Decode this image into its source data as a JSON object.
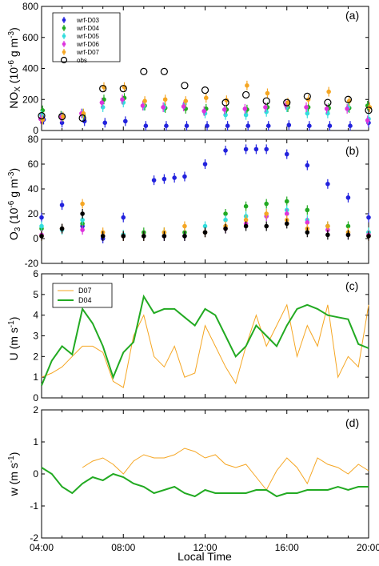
{
  "chart_data": [
    {
      "type": "scatter",
      "panel_label": "(a)",
      "ylabel": "NO_X (10^-6 g m^-3)",
      "ylim": [
        0,
        800
      ],
      "yticks": [
        0,
        200,
        400,
        600,
        800
      ],
      "xlim": [
        4,
        20
      ],
      "legend_placement": "top-left",
      "series": [
        {
          "name": "wrf-D03",
          "color": "#2222dd",
          "marker": "o",
          "x": [
            4.1,
            5.0,
            6.1,
            7.1,
            8.1,
            9.1,
            10.1,
            11.1,
            12.1,
            13.1,
            14.1,
            15.1,
            16.1,
            17.1,
            18.1,
            19.1,
            20.0
          ],
          "values": [
            70,
            50,
            60,
            50,
            60,
            30,
            30,
            30,
            30,
            30,
            30,
            30,
            35,
            30,
            30,
            30,
            50
          ]
        },
        {
          "name": "wrf-D04",
          "color": "#22aa22",
          "marker": "o",
          "x": [
            4.05,
            4.95,
            6.05,
            7.05,
            8.05,
            9.05,
            10.05,
            11.05,
            12.05,
            13.05,
            14.05,
            15.05,
            16.05,
            17.05,
            18.05,
            19.05,
            19.95
          ],
          "values": [
            130,
            95,
            100,
            200,
            210,
            160,
            145,
            140,
            140,
            135,
            135,
            150,
            150,
            150,
            145,
            145,
            160
          ]
        },
        {
          "name": "wrf-D05",
          "color": "#33dddd",
          "marker": "o",
          "x": [
            4.0,
            5.0,
            6.0,
            7.0,
            8.0,
            9.0,
            10.0,
            11.0,
            12.0,
            13.0,
            14.0,
            15.0,
            16.0,
            17.0,
            18.0,
            19.0,
            20.0
          ],
          "values": [
            100,
            90,
            110,
            150,
            180,
            160,
            150,
            170,
            110,
            100,
            100,
            120,
            150,
            110,
            110,
            150,
            75
          ]
        },
        {
          "name": "wrf-D06",
          "color": "#dd33dd",
          "marker": "o",
          "x": [
            3.95,
            4.95,
            5.95,
            6.95,
            7.95,
            8.95,
            9.95,
            10.95,
            11.95,
            12.95,
            13.95,
            14.95,
            15.95,
            16.95,
            17.95,
            18.95,
            19.95
          ],
          "values": [
            75,
            85,
            110,
            180,
            200,
            160,
            150,
            155,
            125,
            135,
            140,
            150,
            165,
            150,
            140,
            140,
            65
          ]
        },
        {
          "name": "wrf-D07",
          "color": "#f5a623",
          "marker": "o",
          "x": [
            4.05,
            5.05,
            6.05,
            7.05,
            8.05,
            9.05,
            10.05,
            11.05,
            12.05,
            13.05,
            14.05,
            15.05,
            16.05,
            17.05,
            18.05,
            19.05,
            20.05
          ],
          "values": [
            70,
            90,
            110,
            280,
            280,
            190,
            200,
            190,
            210,
            195,
            290,
            240,
            180,
            200,
            250,
            190,
            150
          ]
        },
        {
          "name": "obs",
          "color": "#000000",
          "marker": "open-circle",
          "x": [
            4.0,
            5.0,
            6.0,
            7.0,
            8.0,
            9.0,
            10.0,
            11.0,
            12.0,
            13.0,
            14.0,
            15.0,
            16.0,
            17.0,
            18.0,
            19.0,
            20.0
          ],
          "values": [
            95,
            90,
            80,
            270,
            270,
            380,
            380,
            290,
            260,
            180,
            230,
            190,
            180,
            220,
            180,
            200,
            130
          ]
        }
      ]
    },
    {
      "type": "scatter",
      "panel_label": "(b)",
      "ylabel": "O_3 (10^-6 g m^-3)",
      "ylim": [
        -20,
        80
      ],
      "yticks": [
        -20,
        0,
        20,
        40,
        60,
        80
      ],
      "xlim": [
        4,
        20
      ],
      "series": [
        {
          "name": "wrf-D03",
          "x": [
            4.0,
            5.0,
            6.0,
            7.0,
            8.0,
            9.0,
            9.5,
            10.0,
            10.5,
            11.0,
            12.0,
            13.0,
            14.0,
            14.5,
            15.0,
            16.0,
            17.0,
            18.0,
            19.0,
            20.0
          ],
          "values": [
            17,
            27,
            10,
            0,
            17,
            2,
            47,
            48,
            49,
            50,
            60,
            71,
            72,
            72,
            72,
            68,
            59,
            44,
            33,
            17
          ]
        },
        {
          "name": "wrf-D04",
          "x": [
            4.0,
            5.0,
            6.0,
            7.0,
            8.0,
            9.0,
            10.0,
            11.0,
            12.0,
            13.0,
            14.0,
            15.0,
            16.0,
            17.0,
            18.0,
            19.0,
            20.0
          ],
          "values": [
            8,
            8,
            12,
            2,
            3,
            5,
            5,
            5,
            5,
            20,
            26,
            28,
            30,
            23,
            10,
            10,
            5
          ]
        },
        {
          "name": "wrf-D05",
          "x": [
            4.0,
            5.0,
            6.0,
            7.0,
            8.0,
            9.0,
            10.0,
            11.0,
            12.0,
            13.0,
            14.0,
            15.0,
            16.0,
            17.0,
            18.0,
            19.0,
            20.0
          ],
          "values": [
            10,
            7,
            15,
            2,
            3,
            2,
            2,
            2,
            10,
            15,
            18,
            18,
            23,
            15,
            10,
            3,
            5
          ]
        },
        {
          "name": "wrf-D06",
          "x": [
            4.0,
            5.0,
            6.0,
            7.0,
            8.0,
            9.0,
            10.0,
            11.0,
            12.0,
            13.0,
            14.0,
            15.0,
            16.0,
            17.0,
            18.0,
            19.0,
            20.0
          ],
          "values": [
            3,
            8,
            7,
            2,
            2,
            2,
            2,
            2,
            5,
            8,
            12,
            18,
            20,
            13,
            7,
            3,
            3
          ]
        },
        {
          "name": "wrf-D07",
          "x": [
            4.0,
            5.0,
            6.0,
            7.0,
            8.0,
            9.0,
            10.0,
            11.0,
            12.0,
            13.0,
            14.0,
            15.0,
            16.0,
            17.0,
            18.0,
            19.0,
            20.0
          ],
          "values": [
            2,
            8,
            28,
            5,
            2,
            2,
            5,
            10,
            5,
            10,
            15,
            20,
            15,
            8,
            10,
            5,
            2
          ]
        },
        {
          "name": "obs",
          "x": [
            4.0,
            5.0,
            6.0,
            7.0,
            8.0,
            9.0,
            10.0,
            11.0,
            12.0,
            13.0,
            14.0,
            15.0,
            16.0,
            17.0,
            18.0,
            19.0,
            20.0
          ],
          "values": [
            2,
            8,
            20,
            2,
            2,
            2,
            2,
            2,
            5,
            8,
            10,
            10,
            12,
            5,
            3,
            3,
            2
          ]
        }
      ]
    },
    {
      "type": "line",
      "panel_label": "(c)",
      "ylabel": "U (m s^-1)",
      "ylim": [
        0,
        6
      ],
      "yticks": [
        0,
        1,
        2,
        3,
        4,
        5,
        6
      ],
      "xlim": [
        4,
        20
      ],
      "legend_placement": "top-left",
      "series": [
        {
          "name": "D07",
          "color": "#f5a623",
          "x": [
            4.0,
            4.5,
            5.0,
            5.5,
            6.0,
            6.5,
            7.0,
            7.5,
            8.0,
            8.5,
            9.0,
            9.5,
            10.0,
            10.5,
            11.0,
            11.5,
            12.0,
            12.5,
            13.0,
            13.5,
            14.0,
            14.5,
            15.0,
            15.5,
            16.0,
            16.5,
            17.0,
            17.5,
            18.0,
            18.5,
            19.0,
            19.5,
            20.0
          ],
          "values": [
            1.0,
            1.2,
            1.5,
            2.0,
            2.5,
            2.5,
            2.2,
            0.8,
            0.5,
            3.0,
            4.0,
            2.0,
            1.5,
            2.5,
            1.0,
            1.2,
            3.5,
            2.5,
            1.5,
            0.7,
            2.5,
            4.0,
            2.5,
            3.5,
            4.5,
            2.0,
            3.5,
            2.5,
            4.5,
            1.0,
            2.0,
            1.5,
            4.5
          ]
        },
        {
          "name": "D04",
          "color": "#22aa22",
          "x": [
            4.0,
            4.5,
            5.0,
            5.5,
            6.0,
            6.5,
            7.0,
            7.5,
            8.0,
            8.5,
            9.0,
            9.5,
            10.0,
            10.5,
            11.0,
            11.5,
            12.0,
            12.5,
            13.0,
            13.5,
            14.0,
            14.5,
            15.0,
            15.5,
            16.0,
            16.5,
            17.0,
            17.5,
            18.0,
            18.5,
            19.0,
            19.5,
            20.0
          ],
          "values": [
            0.6,
            1.8,
            2.5,
            2.1,
            4.3,
            3.6,
            2.5,
            1.0,
            2.2,
            2.7,
            4.9,
            4.1,
            4.3,
            4.3,
            3.9,
            3.5,
            4.3,
            4.0,
            3.0,
            2.0,
            2.5,
            3.5,
            3.0,
            2.5,
            3.5,
            4.3,
            4.5,
            4.3,
            4.0,
            3.9,
            3.8,
            2.6,
            2.4
          ]
        }
      ]
    },
    {
      "type": "line",
      "panel_label": "(d)",
      "ylabel": "w (m s^-1)",
      "ylim": [
        -2,
        2
      ],
      "yticks": [
        -2,
        -1,
        0,
        1,
        2
      ],
      "xlim": [
        4,
        20
      ],
      "xlabel": "Local Time",
      "xticks": [
        "04:00",
        "08:00",
        "12:00",
        "16:00",
        "20:00"
      ],
      "series": [
        {
          "name": "D07",
          "color": "#f5a623",
          "x": [
            6.0,
            6.5,
            7.0,
            7.5,
            8.0,
            8.5,
            9.0,
            9.5,
            10.0,
            10.5,
            11.0,
            11.5,
            12.0,
            12.5,
            13.0,
            13.5,
            14.0,
            14.5,
            15.0,
            15.5,
            16.0,
            16.5,
            17.0,
            17.5,
            18.0,
            18.5,
            19.0,
            19.5,
            20.0
          ],
          "values": [
            0.2,
            0.4,
            0.5,
            0.3,
            0.0,
            0.4,
            0.6,
            0.5,
            0.5,
            0.6,
            0.8,
            0.7,
            0.5,
            0.6,
            0.3,
            0.2,
            0.3,
            -0.1,
            -0.5,
            0.1,
            0.5,
            0.2,
            -0.3,
            0.5,
            0.3,
            0.2,
            0.0,
            0.3,
            0.1
          ]
        },
        {
          "name": "D04",
          "color": "#22aa22",
          "x": [
            4.0,
            4.5,
            5.0,
            5.5,
            6.0,
            6.5,
            7.0,
            7.5,
            8.0,
            8.5,
            9.0,
            9.5,
            10.0,
            10.5,
            11.0,
            11.5,
            12.0,
            12.5,
            13.0,
            13.5,
            14.0,
            14.5,
            15.0,
            15.5,
            16.0,
            16.5,
            17.0,
            17.5,
            18.0,
            18.5,
            19.0,
            19.5,
            20.0
          ],
          "values": [
            0.2,
            0.0,
            -0.4,
            -0.6,
            -0.3,
            -0.1,
            -0.2,
            0.0,
            -0.1,
            -0.3,
            -0.4,
            -0.6,
            -0.5,
            -0.4,
            -0.6,
            -0.7,
            -0.5,
            -0.6,
            -0.6,
            -0.6,
            -0.6,
            -0.5,
            -0.5,
            -0.7,
            -0.6,
            -0.6,
            -0.5,
            -0.5,
            -0.5,
            -0.4,
            -0.5,
            -0.4,
            -0.4
          ]
        }
      ]
    }
  ]
}
